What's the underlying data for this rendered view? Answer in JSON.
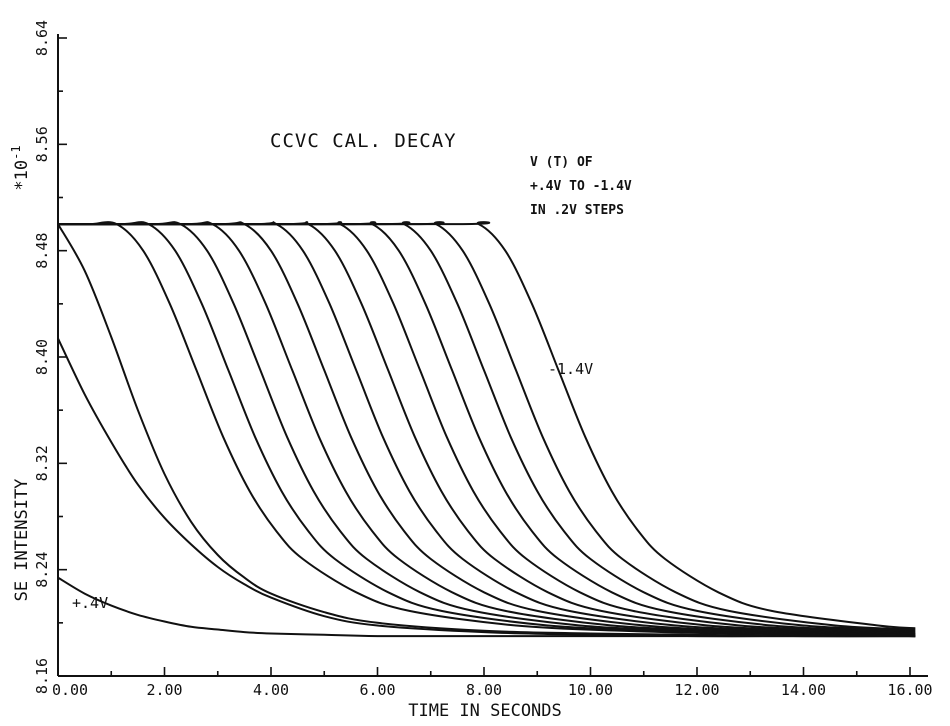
{
  "chart_data": {
    "type": "line",
    "title": "CCVC CAL. DECAY",
    "xlabel": "TIME IN SECONDS",
    "ylabel": "SE INTENSITY",
    "y_multiplier": "*10",
    "y_multiplier_exp": "-1",
    "xlim": [
      0,
      16
    ],
    "ylim": [
      8.16,
      8.64
    ],
    "x_ticks": [
      "0.00",
      "2.00",
      "4.00",
      "6.00",
      "8.00",
      "10.00",
      "12.00",
      "14.00",
      "16.00"
    ],
    "y_ticks": [
      "8.16",
      "8.24",
      "8.32",
      "8.40",
      "8.48",
      "8.56",
      "8.64"
    ],
    "y_tick_values": [
      8.16,
      8.24,
      8.32,
      8.4,
      8.48,
      8.56,
      8.64
    ],
    "annotation_lines": [
      "V (T)  OF",
      "+.4V  TO  -1.4V",
      "IN  .2V  STEPS"
    ],
    "grid": false,
    "legend": "none",
    "series": [
      {
        "name": "+.4V",
        "x": [
          0,
          0.5,
          1,
          1.5,
          2,
          2.5,
          3,
          3.5,
          4,
          5,
          6,
          8,
          10,
          12,
          14,
          16.1
        ],
        "y": [
          8.234,
          8.222,
          8.213,
          8.206,
          8.201,
          8.197,
          8.195,
          8.193,
          8.192,
          8.191,
          8.19,
          8.19,
          8.19,
          8.19,
          8.19,
          8.19
        ]
      },
      {
        "x": [
          0,
          0.5,
          1,
          1.5,
          2,
          2.5,
          3,
          3.5,
          4,
          5,
          6,
          8,
          10,
          12,
          14,
          16.1
        ],
        "y": [
          8.414,
          8.372,
          8.336,
          8.304,
          8.279,
          8.259,
          8.242,
          8.229,
          8.219,
          8.205,
          8.198,
          8.193,
          8.191,
          8.19,
          8.19,
          8.19
        ]
      },
      {
        "x": [
          0,
          0.5,
          1,
          1.5,
          2,
          2.5,
          3,
          3.5,
          4,
          5,
          6,
          8,
          10,
          12,
          14,
          16.1
        ],
        "y": [
          8.5,
          8.465,
          8.415,
          8.36,
          8.312,
          8.276,
          8.251,
          8.234,
          8.222,
          8.208,
          8.2,
          8.194,
          8.192,
          8.191,
          8.19,
          8.19
        ]
      },
      {
        "x": [
          0,
          0.6,
          1.1,
          1.6,
          2.1,
          2.6,
          3.1,
          3.6,
          4.1,
          4.6,
          5.6,
          6.6,
          8.6,
          10.6,
          12.6,
          14.6,
          16.1
        ],
        "y": [
          8.5,
          8.5,
          8.5,
          8.48,
          8.44,
          8.39,
          8.34,
          8.299,
          8.269,
          8.248,
          8.223,
          8.209,
          8.198,
          8.194,
          8.192,
          8.191,
          8.19
        ]
      },
      {
        "x": [
          0,
          1.2,
          1.7,
          2.2,
          2.7,
          3.2,
          3.7,
          4.2,
          4.7,
          5.2,
          6.2,
          7.2,
          9.2,
          11.2,
          13.2,
          16.1
        ],
        "y": [
          8.5,
          8.5,
          8.5,
          8.48,
          8.44,
          8.39,
          8.34,
          8.299,
          8.269,
          8.248,
          8.223,
          8.209,
          8.198,
          8.194,
          8.192,
          8.19
        ]
      },
      {
        "x": [
          0,
          1.8,
          2.3,
          2.8,
          3.3,
          3.8,
          4.3,
          4.8,
          5.3,
          5.8,
          6.8,
          7.8,
          9.8,
          11.8,
          13.8,
          16.1
        ],
        "y": [
          8.5,
          8.5,
          8.5,
          8.48,
          8.44,
          8.39,
          8.34,
          8.299,
          8.269,
          8.248,
          8.223,
          8.209,
          8.198,
          8.194,
          8.192,
          8.19
        ]
      },
      {
        "x": [
          0,
          2.4,
          2.9,
          3.4,
          3.9,
          4.4,
          4.9,
          5.4,
          5.9,
          6.4,
          7.4,
          8.4,
          10.4,
          12.4,
          14.4,
          16.1
        ],
        "y": [
          8.5,
          8.5,
          8.5,
          8.48,
          8.44,
          8.39,
          8.34,
          8.299,
          8.269,
          8.248,
          8.223,
          8.209,
          8.198,
          8.194,
          8.192,
          8.19
        ]
      },
      {
        "x": [
          0,
          3.0,
          3.5,
          4.0,
          4.5,
          5.0,
          5.5,
          6.0,
          6.5,
          7.0,
          8.0,
          9.0,
          11.0,
          13.0,
          16.1
        ],
        "y": [
          8.5,
          8.5,
          8.5,
          8.48,
          8.44,
          8.39,
          8.34,
          8.299,
          8.269,
          8.248,
          8.223,
          8.209,
          8.198,
          8.194,
          8.191
        ]
      },
      {
        "x": [
          0,
          3.6,
          4.1,
          4.6,
          5.1,
          5.6,
          6.1,
          6.6,
          7.1,
          7.6,
          8.6,
          9.6,
          11.6,
          13.6,
          16.1
        ],
        "y": [
          8.5,
          8.5,
          8.5,
          8.48,
          8.44,
          8.39,
          8.34,
          8.299,
          8.269,
          8.248,
          8.223,
          8.209,
          8.198,
          8.194,
          8.191
        ]
      },
      {
        "x": [
          0,
          4.2,
          4.7,
          5.2,
          5.7,
          6.2,
          6.7,
          7.2,
          7.7,
          8.2,
          9.2,
          10.2,
          12.2,
          14.2,
          16.1
        ],
        "y": [
          8.5,
          8.5,
          8.5,
          8.48,
          8.44,
          8.39,
          8.34,
          8.299,
          8.269,
          8.248,
          8.223,
          8.209,
          8.198,
          8.194,
          8.192
        ]
      },
      {
        "x": [
          0,
          4.8,
          5.3,
          5.8,
          6.3,
          6.8,
          7.3,
          7.8,
          8.3,
          8.8,
          9.8,
          10.8,
          12.8,
          14.8,
          16.1
        ],
        "y": [
          8.5,
          8.5,
          8.5,
          8.48,
          8.44,
          8.39,
          8.34,
          8.299,
          8.269,
          8.248,
          8.223,
          8.209,
          8.198,
          8.194,
          8.192
        ]
      },
      {
        "x": [
          0,
          5.4,
          5.9,
          6.4,
          6.9,
          7.4,
          7.9,
          8.4,
          8.9,
          9.4,
          10.4,
          11.4,
          13.4,
          15.4,
          16.1
        ],
        "y": [
          8.5,
          8.5,
          8.5,
          8.48,
          8.44,
          8.39,
          8.34,
          8.299,
          8.269,
          8.248,
          8.223,
          8.209,
          8.198,
          8.194,
          8.193
        ]
      },
      {
        "x": [
          0,
          6.0,
          6.5,
          7.0,
          7.5,
          8.0,
          8.5,
          9.0,
          9.5,
          10.0,
          11.0,
          12.0,
          14.0,
          16.1
        ],
        "y": [
          8.5,
          8.5,
          8.5,
          8.48,
          8.44,
          8.39,
          8.34,
          8.299,
          8.269,
          8.248,
          8.223,
          8.209,
          8.198,
          8.194
        ]
      },
      {
        "x": [
          0,
          6.6,
          7.1,
          7.6,
          8.1,
          8.6,
          9.1,
          9.6,
          10.1,
          10.6,
          11.6,
          12.6,
          14.6,
          16.1
        ],
        "y": [
          8.5,
          8.5,
          8.5,
          8.48,
          8.44,
          8.39,
          8.34,
          8.299,
          8.269,
          8.248,
          8.223,
          8.209,
          8.198,
          8.195
        ]
      },
      {
        "name": "-1.4V",
        "x": [
          0,
          7.4,
          7.9,
          8.4,
          8.9,
          9.4,
          9.9,
          10.4,
          10.9,
          11.4,
          12.4,
          13.4,
          15.4,
          16.1
        ],
        "y": [
          8.5,
          8.5,
          8.5,
          8.48,
          8.44,
          8.39,
          8.34,
          8.299,
          8.269,
          8.248,
          8.223,
          8.209,
          8.198,
          8.196
        ]
      }
    ]
  }
}
